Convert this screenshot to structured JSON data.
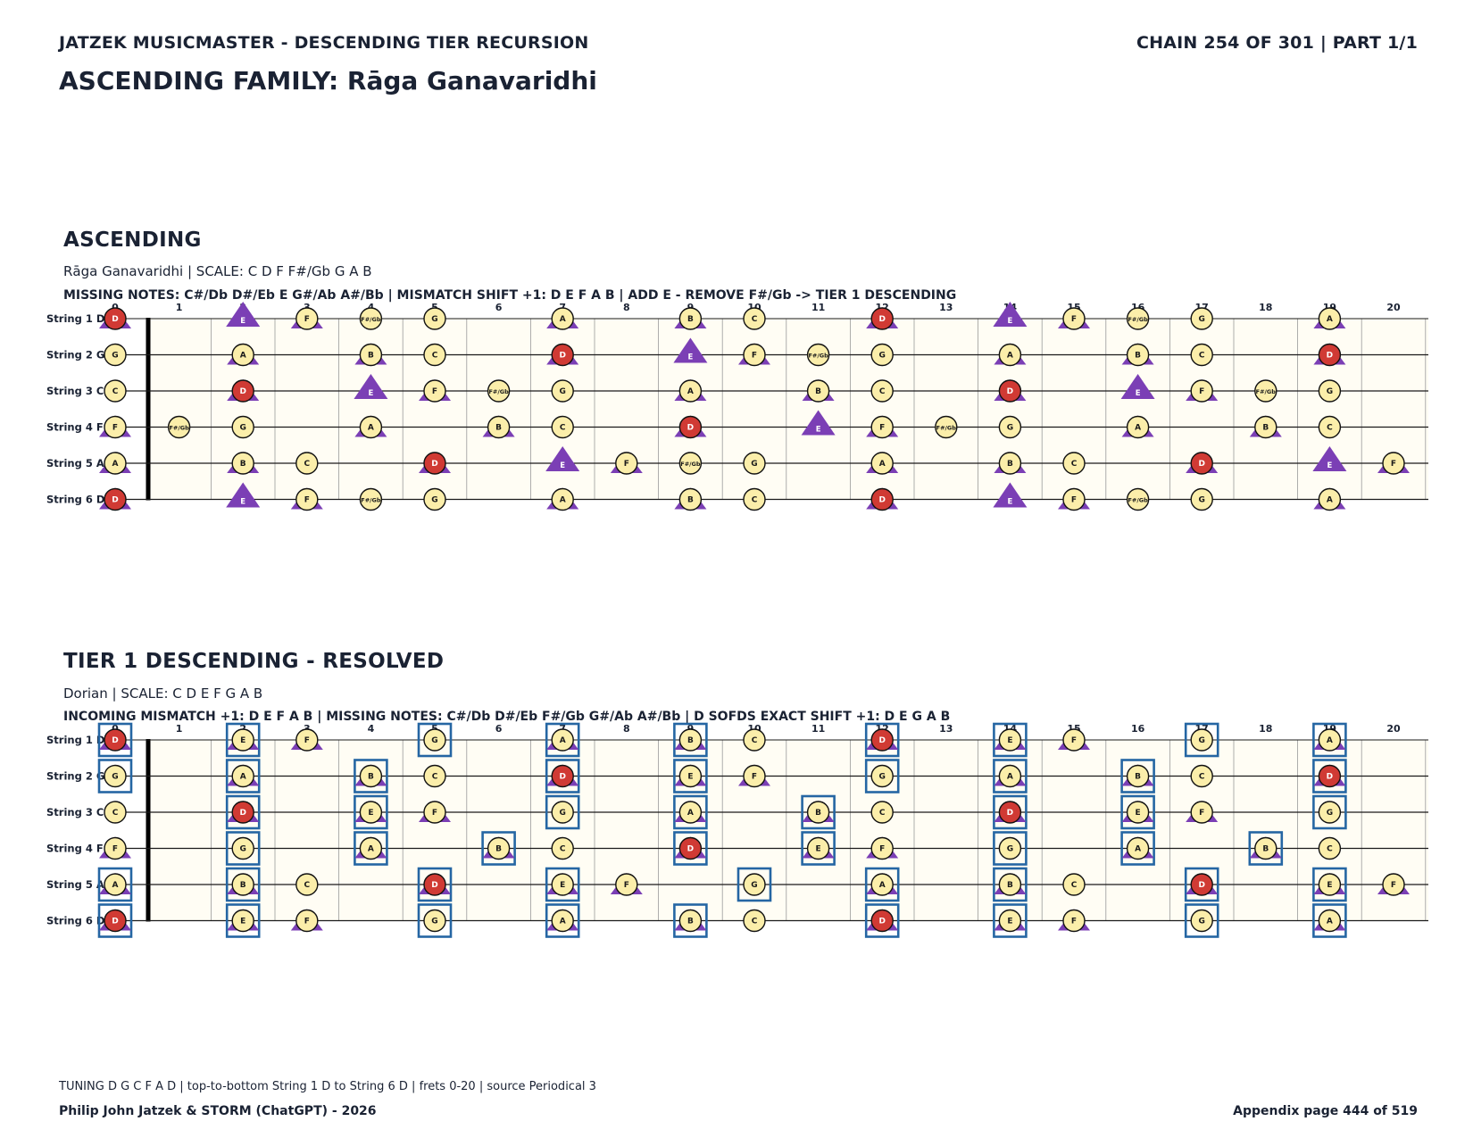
{
  "header": {
    "left": "JATZEK MUSICMASTER - DESCENDING TIER RECURSION",
    "right": "CHAIN 254 OF 301  |  PART 1/1",
    "title": "ASCENDING FAMILY: Rāga Ganavaridhi"
  },
  "fretboard": {
    "string_labels": [
      "String 1 D",
      "String 2 G",
      "String 3 C",
      "String 4 F",
      "String 5 A",
      "String 6 D"
    ],
    "open_notes": [
      "D",
      "G",
      "C",
      "F",
      "A",
      "D"
    ],
    "fret_numbers": [
      "0",
      "1",
      "2",
      "3",
      "4",
      "5",
      "6",
      "7",
      "8",
      "9",
      "10",
      "11",
      "12",
      "13",
      "14",
      "15",
      "16",
      "17",
      "18",
      "19",
      "20"
    ],
    "fret_count": 20
  },
  "sections": [
    {
      "id": "ascending",
      "title": "ASCENDING",
      "subtitle": "Rāga Ganavaridhi  |  SCALE: C D F F#/Gb G A B",
      "info": "MISSING NOTES: C#/Db D#/Eb E G#/Ab A#/Bb  |  MISMATCH SHIFT +1: D E F A B  |  ADD E - REMOVE F#/Gb -> TIER 1 DESCENDING",
      "scale": [
        "C",
        "D",
        "F",
        "F#/Gb",
        "G",
        "A",
        "B"
      ],
      "root": "D",
      "triangles": [
        "D",
        "E",
        "F",
        "A",
        "B"
      ],
      "boxes": []
    },
    {
      "id": "tier1",
      "title": "TIER 1 DESCENDING - RESOLVED",
      "subtitle": "Dorian  |  SCALE: C D E F G A B",
      "info": "INCOMING MISMATCH +1: D E F A B  |  MISSING NOTES: C#/Db D#/Eb F#/Gb G#/Ab A#/Bb  |  D SOFDS EXACT SHIFT +1: D E G A B",
      "scale": [
        "C",
        "D",
        "E",
        "F",
        "G",
        "A",
        "B"
      ],
      "root": "D",
      "triangles": [
        "D",
        "E",
        "F",
        "A",
        "B"
      ],
      "boxes": [
        "D",
        "E",
        "G",
        "A",
        "B"
      ]
    }
  ],
  "legend_colors": {
    "note_fill": "#fbeeaa",
    "root_fill": "#d03a34",
    "triangle": "#7b3fb5",
    "box": "#2566a3",
    "board_bg": "#fffdf4"
  },
  "footer": {
    "note": "TUNING D G C F A D | top-to-bottom String 1 D to String 6 D | frets 0-20 | source Periodical 3",
    "credit": "Philip John Jatzek & STORM (ChatGPT) - 2026",
    "page": "Appendix page 444 of 519"
  }
}
